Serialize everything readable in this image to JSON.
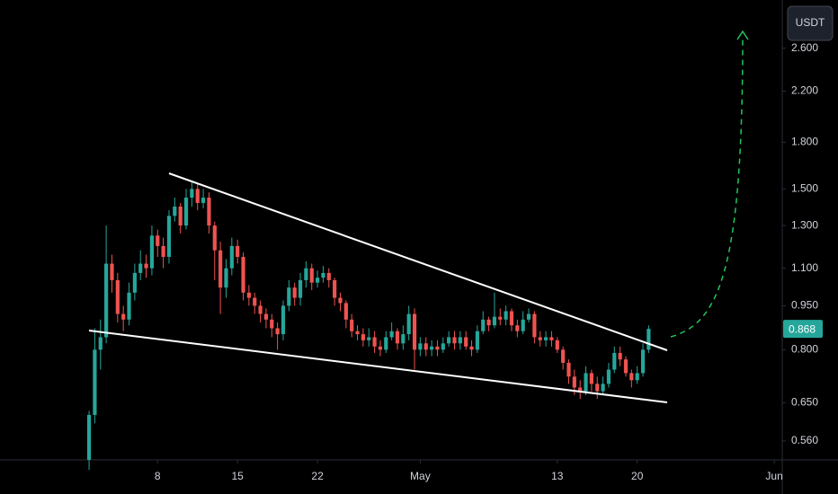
{
  "chart_data": {
    "type": "candlestick",
    "currency": "USDT",
    "log_scale": true,
    "grid": false,
    "ylim": [
      0.52,
      3.14
    ],
    "yticks": [
      {
        "value": 0.56,
        "label": "0.560"
      },
      {
        "value": 0.65,
        "label": "0.650"
      },
      {
        "value": 0.8,
        "label": "0.800"
      },
      {
        "value": 0.95,
        "label": "0.950"
      },
      {
        "value": 1.1,
        "label": "1.100"
      },
      {
        "value": 1.3,
        "label": "1.300"
      },
      {
        "value": 1.5,
        "label": "1.500"
      },
      {
        "value": 1.8,
        "label": "1.800"
      },
      {
        "value": 2.2,
        "label": "2.200"
      },
      {
        "value": 2.6,
        "label": "2.600"
      }
    ],
    "xlim": [
      -15.6,
      121.4
    ],
    "xticks": [
      {
        "value": 12,
        "label": "8"
      },
      {
        "value": 26,
        "label": "15"
      },
      {
        "value": 40,
        "label": "22"
      },
      {
        "value": 58,
        "label": "May"
      },
      {
        "value": 82,
        "label": "13"
      },
      {
        "value": 96,
        "label": "20"
      },
      {
        "value": 120,
        "label": "Jun"
      }
    ],
    "series": [
      {
        "up_color": "#26a69a",
        "down_color": "#ef5350",
        "open": [
          0.52,
          0.62,
          0.8,
          0.84,
          1.12,
          1.05,
          0.92,
          0.9,
          1.0,
          1.08,
          1.12,
          1.1,
          1.25,
          1.2,
          1.15,
          1.35,
          1.4,
          1.3,
          1.45,
          1.5,
          1.42,
          1.45,
          1.3,
          1.18,
          1.02,
          1.1,
          1.2,
          1.15,
          1.0,
          0.98,
          0.95,
          0.92,
          0.9,
          0.87,
          0.85,
          0.95,
          1.02,
          0.98,
          1.05,
          1.1,
          1.04,
          1.06,
          1.08,
          1.05,
          0.98,
          0.96,
          0.9,
          0.86,
          0.85,
          0.83,
          0.84,
          0.81,
          0.8,
          0.84,
          0.86,
          0.82,
          0.85,
          0.92,
          0.8,
          0.82,
          0.8,
          0.81,
          0.8,
          0.82,
          0.84,
          0.82,
          0.84,
          0.81,
          0.8,
          0.86,
          0.9,
          0.88,
          0.91,
          0.9,
          0.93,
          0.88,
          0.86,
          0.9,
          0.92,
          0.84,
          0.83,
          0.84,
          0.83,
          0.8,
          0.76,
          0.72,
          0.69,
          0.68,
          0.73,
          0.7,
          0.68,
          0.7,
          0.74,
          0.79,
          0.77,
          0.73,
          0.71,
          0.73,
          0.8
        ],
        "high": [
          0.63,
          0.87,
          0.9,
          1.3,
          1.16,
          1.08,
          0.95,
          1.04,
          1.12,
          1.18,
          1.16,
          1.3,
          1.28,
          1.24,
          1.38,
          1.45,
          1.42,
          1.5,
          1.55,
          1.53,
          1.5,
          1.48,
          1.32,
          1.22,
          1.14,
          1.24,
          1.23,
          1.17,
          1.03,
          1.0,
          0.97,
          0.94,
          0.92,
          0.89,
          0.97,
          1.05,
          1.04,
          1.08,
          1.13,
          1.12,
          1.09,
          1.11,
          1.1,
          1.06,
          1.0,
          0.97,
          0.92,
          0.88,
          0.87,
          0.87,
          0.86,
          0.83,
          0.86,
          0.89,
          0.87,
          0.88,
          0.95,
          0.94,
          0.84,
          0.84,
          0.83,
          0.83,
          0.84,
          0.86,
          0.86,
          0.86,
          0.86,
          0.83,
          0.88,
          0.93,
          0.91,
          1.0,
          0.94,
          0.95,
          0.94,
          0.9,
          0.93,
          0.94,
          0.93,
          0.86,
          0.86,
          0.86,
          0.84,
          0.81,
          0.77,
          0.74,
          0.71,
          0.75,
          0.74,
          0.72,
          0.72,
          0.76,
          0.81,
          0.81,
          0.78,
          0.74,
          0.75,
          0.82,
          0.88
        ],
        "low": [
          0.5,
          0.6,
          0.74,
          0.82,
          1.0,
          0.89,
          0.86,
          0.88,
          0.97,
          1.05,
          1.06,
          1.07,
          1.15,
          1.1,
          1.12,
          1.32,
          1.26,
          1.28,
          1.4,
          1.38,
          1.39,
          1.26,
          1.05,
          0.92,
          0.98,
          1.07,
          1.12,
          0.97,
          0.95,
          0.92,
          0.89,
          0.87,
          0.84,
          0.8,
          0.83,
          0.93,
          0.95,
          0.95,
          1.02,
          1.01,
          1.02,
          1.04,
          1.02,
          0.95,
          0.93,
          0.87,
          0.84,
          0.83,
          0.81,
          0.81,
          0.79,
          0.78,
          0.79,
          0.83,
          0.8,
          0.8,
          0.83,
          0.74,
          0.78,
          0.78,
          0.78,
          0.78,
          0.79,
          0.81,
          0.8,
          0.8,
          0.8,
          0.78,
          0.79,
          0.85,
          0.86,
          0.87,
          0.88,
          0.88,
          0.86,
          0.84,
          0.85,
          0.89,
          0.82,
          0.81,
          0.81,
          0.81,
          0.79,
          0.74,
          0.7,
          0.67,
          0.66,
          0.67,
          0.68,
          0.66,
          0.67,
          0.69,
          0.73,
          0.75,
          0.72,
          0.69,
          0.7,
          0.72,
          0.79
        ],
        "close": [
          0.62,
          0.8,
          0.84,
          1.12,
          1.05,
          0.92,
          0.9,
          1.0,
          1.08,
          1.12,
          1.1,
          1.25,
          1.2,
          1.15,
          1.35,
          1.4,
          1.3,
          1.45,
          1.5,
          1.42,
          1.45,
          1.3,
          1.18,
          1.02,
          1.1,
          1.2,
          1.15,
          1.0,
          0.98,
          0.95,
          0.92,
          0.9,
          0.87,
          0.85,
          0.95,
          1.02,
          0.98,
          1.05,
          1.1,
          1.04,
          1.06,
          1.08,
          1.05,
          0.98,
          0.96,
          0.9,
          0.86,
          0.85,
          0.83,
          0.84,
          0.81,
          0.8,
          0.84,
          0.86,
          0.82,
          0.85,
          0.92,
          0.8,
          0.82,
          0.8,
          0.81,
          0.8,
          0.82,
          0.84,
          0.82,
          0.84,
          0.81,
          0.8,
          0.86,
          0.9,
          0.88,
          0.91,
          0.9,
          0.93,
          0.88,
          0.86,
          0.9,
          0.92,
          0.84,
          0.83,
          0.84,
          0.83,
          0.8,
          0.76,
          0.72,
          0.69,
          0.68,
          0.73,
          0.7,
          0.68,
          0.7,
          0.74,
          0.79,
          0.77,
          0.73,
          0.71,
          0.73,
          0.8,
          0.868
        ]
      }
    ]
  }
}
